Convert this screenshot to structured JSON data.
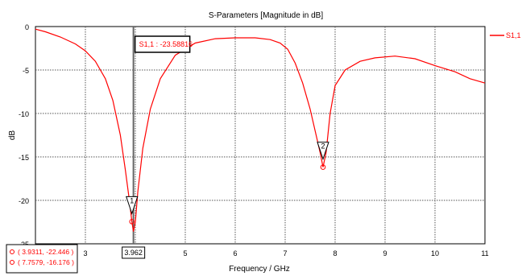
{
  "chart_data": {
    "type": "line",
    "title": "S-Parameters [Magnitude in dB]",
    "xlabel": "Frequency / GHz",
    "ylabel": "dB",
    "xlim": [
      2,
      11
    ],
    "ylim": [
      -25,
      0
    ],
    "x_ticks": [
      "3",
      "4",
      "5",
      "6",
      "7",
      "8",
      "9",
      "10",
      "11"
    ],
    "y_ticks": [
      "0",
      "-5",
      "-10",
      "-15",
      "-20",
      "-25"
    ],
    "grid": true,
    "legend_position": "top-right",
    "series": [
      {
        "name": "S1,1",
        "color": "#ff0000",
        "x": [
          2.0,
          2.2,
          2.5,
          2.8,
          3.0,
          3.2,
          3.4,
          3.55,
          3.7,
          3.8,
          3.88,
          3.93,
          3.962,
          4.0,
          4.05,
          4.15,
          4.3,
          4.5,
          4.8,
          5.2,
          5.6,
          6.0,
          6.4,
          6.7,
          6.9,
          7.05,
          7.2,
          7.35,
          7.5,
          7.6,
          7.7,
          7.7579,
          7.82,
          7.9,
          8.0,
          8.2,
          8.5,
          8.8,
          9.2,
          9.6,
          10.0,
          10.4,
          10.7,
          11.0
        ],
        "y": [
          -0.3,
          -0.6,
          -1.2,
          -2.0,
          -2.8,
          -4.0,
          -6.0,
          -8.5,
          -12.5,
          -16.5,
          -20.0,
          -22.446,
          -23.58816,
          -22.5,
          -19.0,
          -14.0,
          -9.5,
          -6.0,
          -3.3,
          -1.9,
          -1.4,
          -1.3,
          -1.3,
          -1.5,
          -1.9,
          -2.6,
          -4.2,
          -6.5,
          -9.5,
          -12.0,
          -14.5,
          -16.176,
          -14.5,
          -10.0,
          -6.8,
          -5.0,
          -4.0,
          -3.6,
          -3.4,
          -3.7,
          -4.5,
          -5.2,
          -6.0,
          -6.5
        ]
      }
    ],
    "markers": [
      {
        "id": "1",
        "x": 3.9311,
        "y": -22.446
      },
      {
        "id": "2",
        "x": 7.7579,
        "y": -16.176
      }
    ],
    "min_line": {
      "x": 3.962,
      "y": -23.58816,
      "label": "S1,1 : -23.58816",
      "x_label": "3.962"
    },
    "marker_readout": [
      "( 3.9311, -22.446 )",
      "( 7.7579, -16.176 )"
    ]
  }
}
